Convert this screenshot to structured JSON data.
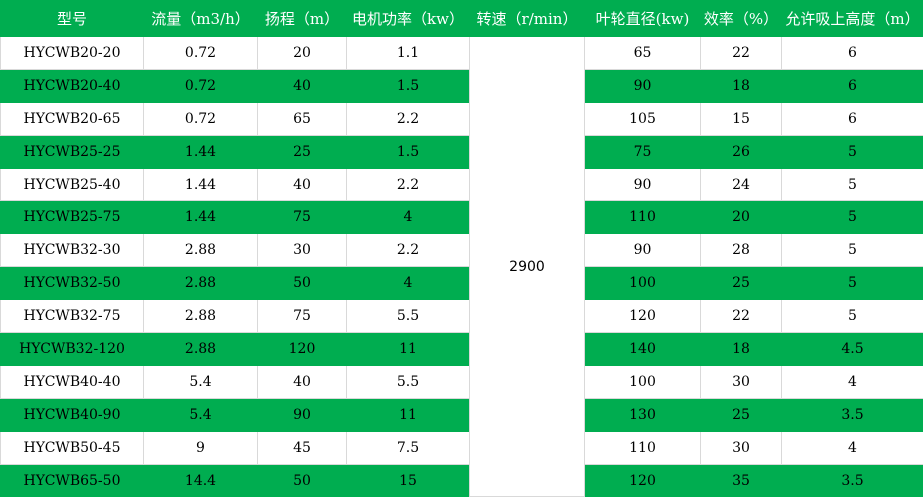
{
  "colors": {
    "header_bg": "#00ad50",
    "alt_row_bg": "#00ad50",
    "row_bg": "#ffffff"
  },
  "headers": [
    "型号",
    "流量（m3/h）",
    "扬程（m）",
    "电机功率（kw）",
    "转速（r/min）",
    "叶轮直径(kw)",
    "效率（%）",
    "允许吸上高度（m）"
  ],
  "speed": "2900",
  "rows": [
    [
      "HYCWB20-20",
      "0.72",
      "20",
      "1.1",
      "65",
      "22",
      "6"
    ],
    [
      "HYCWB20-40",
      "0.72",
      "40",
      "1.5",
      "90",
      "18",
      "6"
    ],
    [
      "HYCWB20-65",
      "0.72",
      "65",
      "2.2",
      "105",
      "15",
      "6"
    ],
    [
      "HYCWB25-25",
      "1.44",
      "25",
      "1.5",
      "75",
      "26",
      "5"
    ],
    [
      "HYCWB25-40",
      "1.44",
      "40",
      "2.2",
      "90",
      "24",
      "5"
    ],
    [
      "HYCWB25-75",
      "1.44",
      "75",
      "4",
      "110",
      "20",
      "5"
    ],
    [
      "HYCWB32-30",
      "2.88",
      "30",
      "2.2",
      "90",
      "28",
      "5"
    ],
    [
      "HYCWB32-50",
      "2.88",
      "50",
      "4",
      "100",
      "25",
      "5"
    ],
    [
      "HYCWB32-75",
      "2.88",
      "75",
      "5.5",
      "120",
      "22",
      "5"
    ],
    [
      "HYCWB32-120",
      "2.88",
      "120",
      "11",
      "140",
      "18",
      "4.5"
    ],
    [
      "HYCWB40-40",
      "5.4",
      "40",
      "5.5",
      "100",
      "30",
      "4"
    ],
    [
      "HYCWB40-90",
      "5.4",
      "90",
      "11",
      "130",
      "25",
      "3.5"
    ],
    [
      "HYCWB50-45",
      "9",
      "45",
      "7.5",
      "110",
      "30",
      "4"
    ],
    [
      "HYCWB65-50",
      "14.4",
      "50",
      "15",
      "120",
      "35",
      "3.5"
    ]
  ]
}
